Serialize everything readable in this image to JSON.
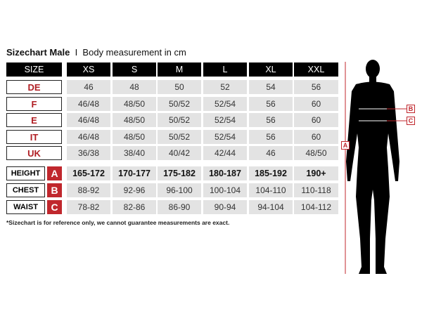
{
  "title": {
    "bold": "Sizechart Male",
    "separator": "I",
    "subtitle": "Body measurement in cm"
  },
  "header": {
    "label": "SIZE",
    "sizes": [
      "XS",
      "S",
      "M",
      "L",
      "XL",
      "XXL"
    ]
  },
  "size_rows": [
    {
      "label": "DE",
      "values": [
        "46",
        "48",
        "50",
        "52",
        "54",
        "56"
      ]
    },
    {
      "label": "F",
      "values": [
        "46/48",
        "48/50",
        "50/52",
        "52/54",
        "56",
        "60"
      ]
    },
    {
      "label": "E",
      "values": [
        "46/48",
        "48/50",
        "50/52",
        "52/54",
        "56",
        "60"
      ]
    },
    {
      "label": "IT",
      "values": [
        "46/48",
        "48/50",
        "50/52",
        "52/54",
        "56",
        "60"
      ]
    },
    {
      "label": "UK",
      "values": [
        "36/38",
        "38/40",
        "40/42",
        "42/44",
        "46",
        "48/50"
      ]
    }
  ],
  "measure_rows": [
    {
      "label": "HEIGHT",
      "letter": "A",
      "values": [
        "165-172",
        "170-177",
        "175-182",
        "180-187",
        "185-192",
        "190+"
      ]
    },
    {
      "label": "CHEST",
      "letter": "B",
      "values": [
        "88-92",
        "92-96",
        "96-100",
        "100-104",
        "104-110",
        "110-118"
      ]
    },
    {
      "label": "WAIST",
      "letter": "C",
      "values": [
        "78-82",
        "82-86",
        "86-90",
        "90-94",
        "94-104",
        "104-112"
      ]
    }
  ],
  "footnote": "*Sizechart is for reference only, we cannot guarantee measurements are exact.",
  "figure_markers": {
    "height": "A",
    "chest": "B",
    "waist": "C"
  },
  "colors": {
    "accent": "#c0272d",
    "header": "#000000",
    "cell": "#e3e3e3"
  }
}
